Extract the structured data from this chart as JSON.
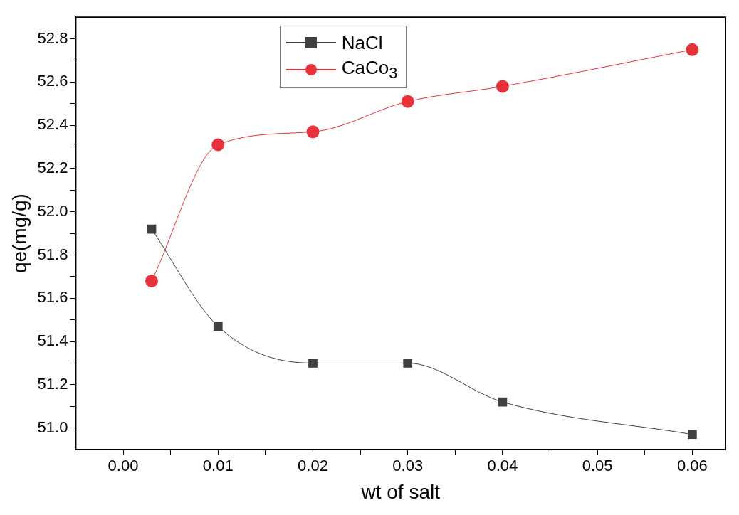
{
  "chart_data": {
    "type": "line",
    "xlabel": "wt of salt",
    "ylabel": "qe(mg/g)",
    "x": [
      0.003,
      0.01,
      0.02,
      0.03,
      0.04,
      0.06
    ],
    "series": [
      {
        "name": "NaCl",
        "color": "#404040",
        "marker": "square",
        "values": [
          51.92,
          51.47,
          51.3,
          51.3,
          51.12,
          50.97
        ]
      },
      {
        "name": "CaCo$_{3}$",
        "color": "#e8323a",
        "marker": "circle",
        "values": [
          51.68,
          52.31,
          52.37,
          52.51,
          52.58,
          52.75
        ]
      }
    ],
    "xlim": [
      -0.005,
      0.0635
    ],
    "xticks": [
      {
        "value": 0,
        "label": "0.00"
      },
      {
        "value": 0.005,
        "label": null
      },
      {
        "value": 0.01,
        "label": "0.01"
      },
      {
        "value": 0.015,
        "label": null
      },
      {
        "value": 0.02,
        "label": "0.02"
      },
      {
        "value": 0.025,
        "label": null
      },
      {
        "value": 0.03,
        "label": "0.03"
      },
      {
        "value": 0.035,
        "label": null
      },
      {
        "value": 0.04,
        "label": "0.04"
      },
      {
        "value": 0.045,
        "label": null
      },
      {
        "value": 0.05,
        "label": "0.05"
      },
      {
        "value": 0.055,
        "label": null
      },
      {
        "value": 0.06,
        "label": "0.06"
      }
    ],
    "ylim": [
      50.9,
      52.9
    ],
    "yticks": [
      {
        "value": 51,
        "label": "51.0"
      },
      {
        "value": 51.1,
        "label": null
      },
      {
        "value": 51.2,
        "label": "51.2"
      },
      {
        "value": 51.3,
        "label": null
      },
      {
        "value": 51.4,
        "label": "51.4"
      },
      {
        "value": 51.5,
        "label": null
      },
      {
        "value": 51.6,
        "label": "51.6"
      },
      {
        "value": 51.7,
        "label": null
      },
      {
        "value": 51.8,
        "label": "51.8"
      },
      {
        "value": 51.9,
        "label": null
      },
      {
        "value": 52,
        "label": "52.0"
      },
      {
        "value": 52.1,
        "label": null
      },
      {
        "value": 52.2,
        "label": "52.2"
      },
      {
        "value": 52.3,
        "label": null
      },
      {
        "value": 52.4,
        "label": "52.4"
      },
      {
        "value": 52.5,
        "label": null
      },
      {
        "value": 52.6,
        "label": "52.6"
      },
      {
        "value": 52.7,
        "label": null
      },
      {
        "value": 52.8,
        "label": "52.8"
      }
    ],
    "grid": false,
    "legend": "top",
    "line_style": "solid"
  }
}
